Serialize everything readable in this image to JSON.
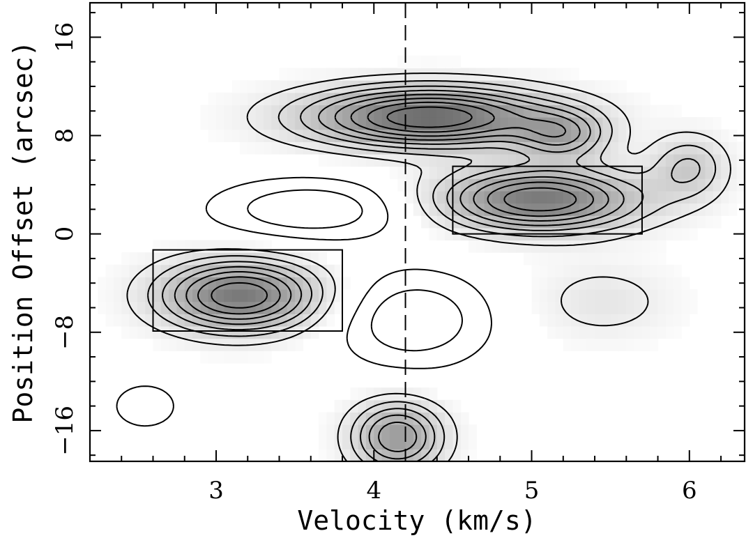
{
  "chart_data": {
    "type": "contour",
    "xlabel": "Velocity (km/s)",
    "ylabel": "Position Offset (arcsec)",
    "xlim": [
      2.2,
      6.35
    ],
    "ylim": [
      -18.5,
      18.8
    ],
    "xticks": {
      "major": [
        3,
        4,
        5,
        6
      ],
      "labels": [
        "3",
        "4",
        "5",
        "6"
      ],
      "minor_step": 0.2
    },
    "yticks": {
      "major": [
        -16,
        -8,
        0,
        8,
        16
      ],
      "labels": [
        "−16",
        "−8",
        "0",
        "8",
        "16"
      ],
      "minor_step": 2
    },
    "reference_velocity": 4.2,
    "grayscale_background": true,
    "positive_contours": "solid",
    "negative_contours": "dashed",
    "components": [
      {
        "v": 4.35,
        "pos": 9.5,
        "sv": 0.55,
        "sp": 1.7,
        "amp": 9,
        "sign": 1
      },
      {
        "v": 5.2,
        "pos": 8.0,
        "sv": 0.2,
        "sp": 1.4,
        "amp": 4,
        "sign": 1
      },
      {
        "v": 5.05,
        "pos": 2.8,
        "sv": 0.45,
        "sp": 1.8,
        "amp": 8,
        "sign": 1
      },
      {
        "v": 6.0,
        "pos": 5.5,
        "sv": 0.17,
        "sp": 1.8,
        "amp": 3,
        "sign": 1
      },
      {
        "v": 3.15,
        "pos": -5.0,
        "sv": 0.35,
        "sp": 2.0,
        "amp": 8,
        "sign": 1
      },
      {
        "v": 4.15,
        "pos": -16.5,
        "sv": 0.2,
        "sp": 2.0,
        "amp": 6,
        "sign": 1
      },
      {
        "v": 5.45,
        "pos": -5.5,
        "sv": 0.32,
        "sp": 2.2,
        "amp": 1.5,
        "sign": 1
      },
      {
        "v": 3.6,
        "pos": 2.0,
        "sv": 0.45,
        "sp": 1.8,
        "amp": 3,
        "sign": -1
      },
      {
        "v": 4.25,
        "pos": -7.0,
        "sv": 0.35,
        "sp": 2.8,
        "amp": 3,
        "sign": -1
      },
      {
        "v": 2.55,
        "pos": -14.0,
        "sv": 0.2,
        "sp": 1.8,
        "amp": 1.5,
        "sign": -1
      }
    ],
    "boxes": [
      {
        "v_min": 2.6,
        "v_max": 3.8,
        "pos_min": -7.9,
        "pos_max": -1.3
      },
      {
        "v_min": 4.5,
        "v_max": 5.7,
        "pos_min": 0.0,
        "pos_max": 5.5
      }
    ]
  }
}
